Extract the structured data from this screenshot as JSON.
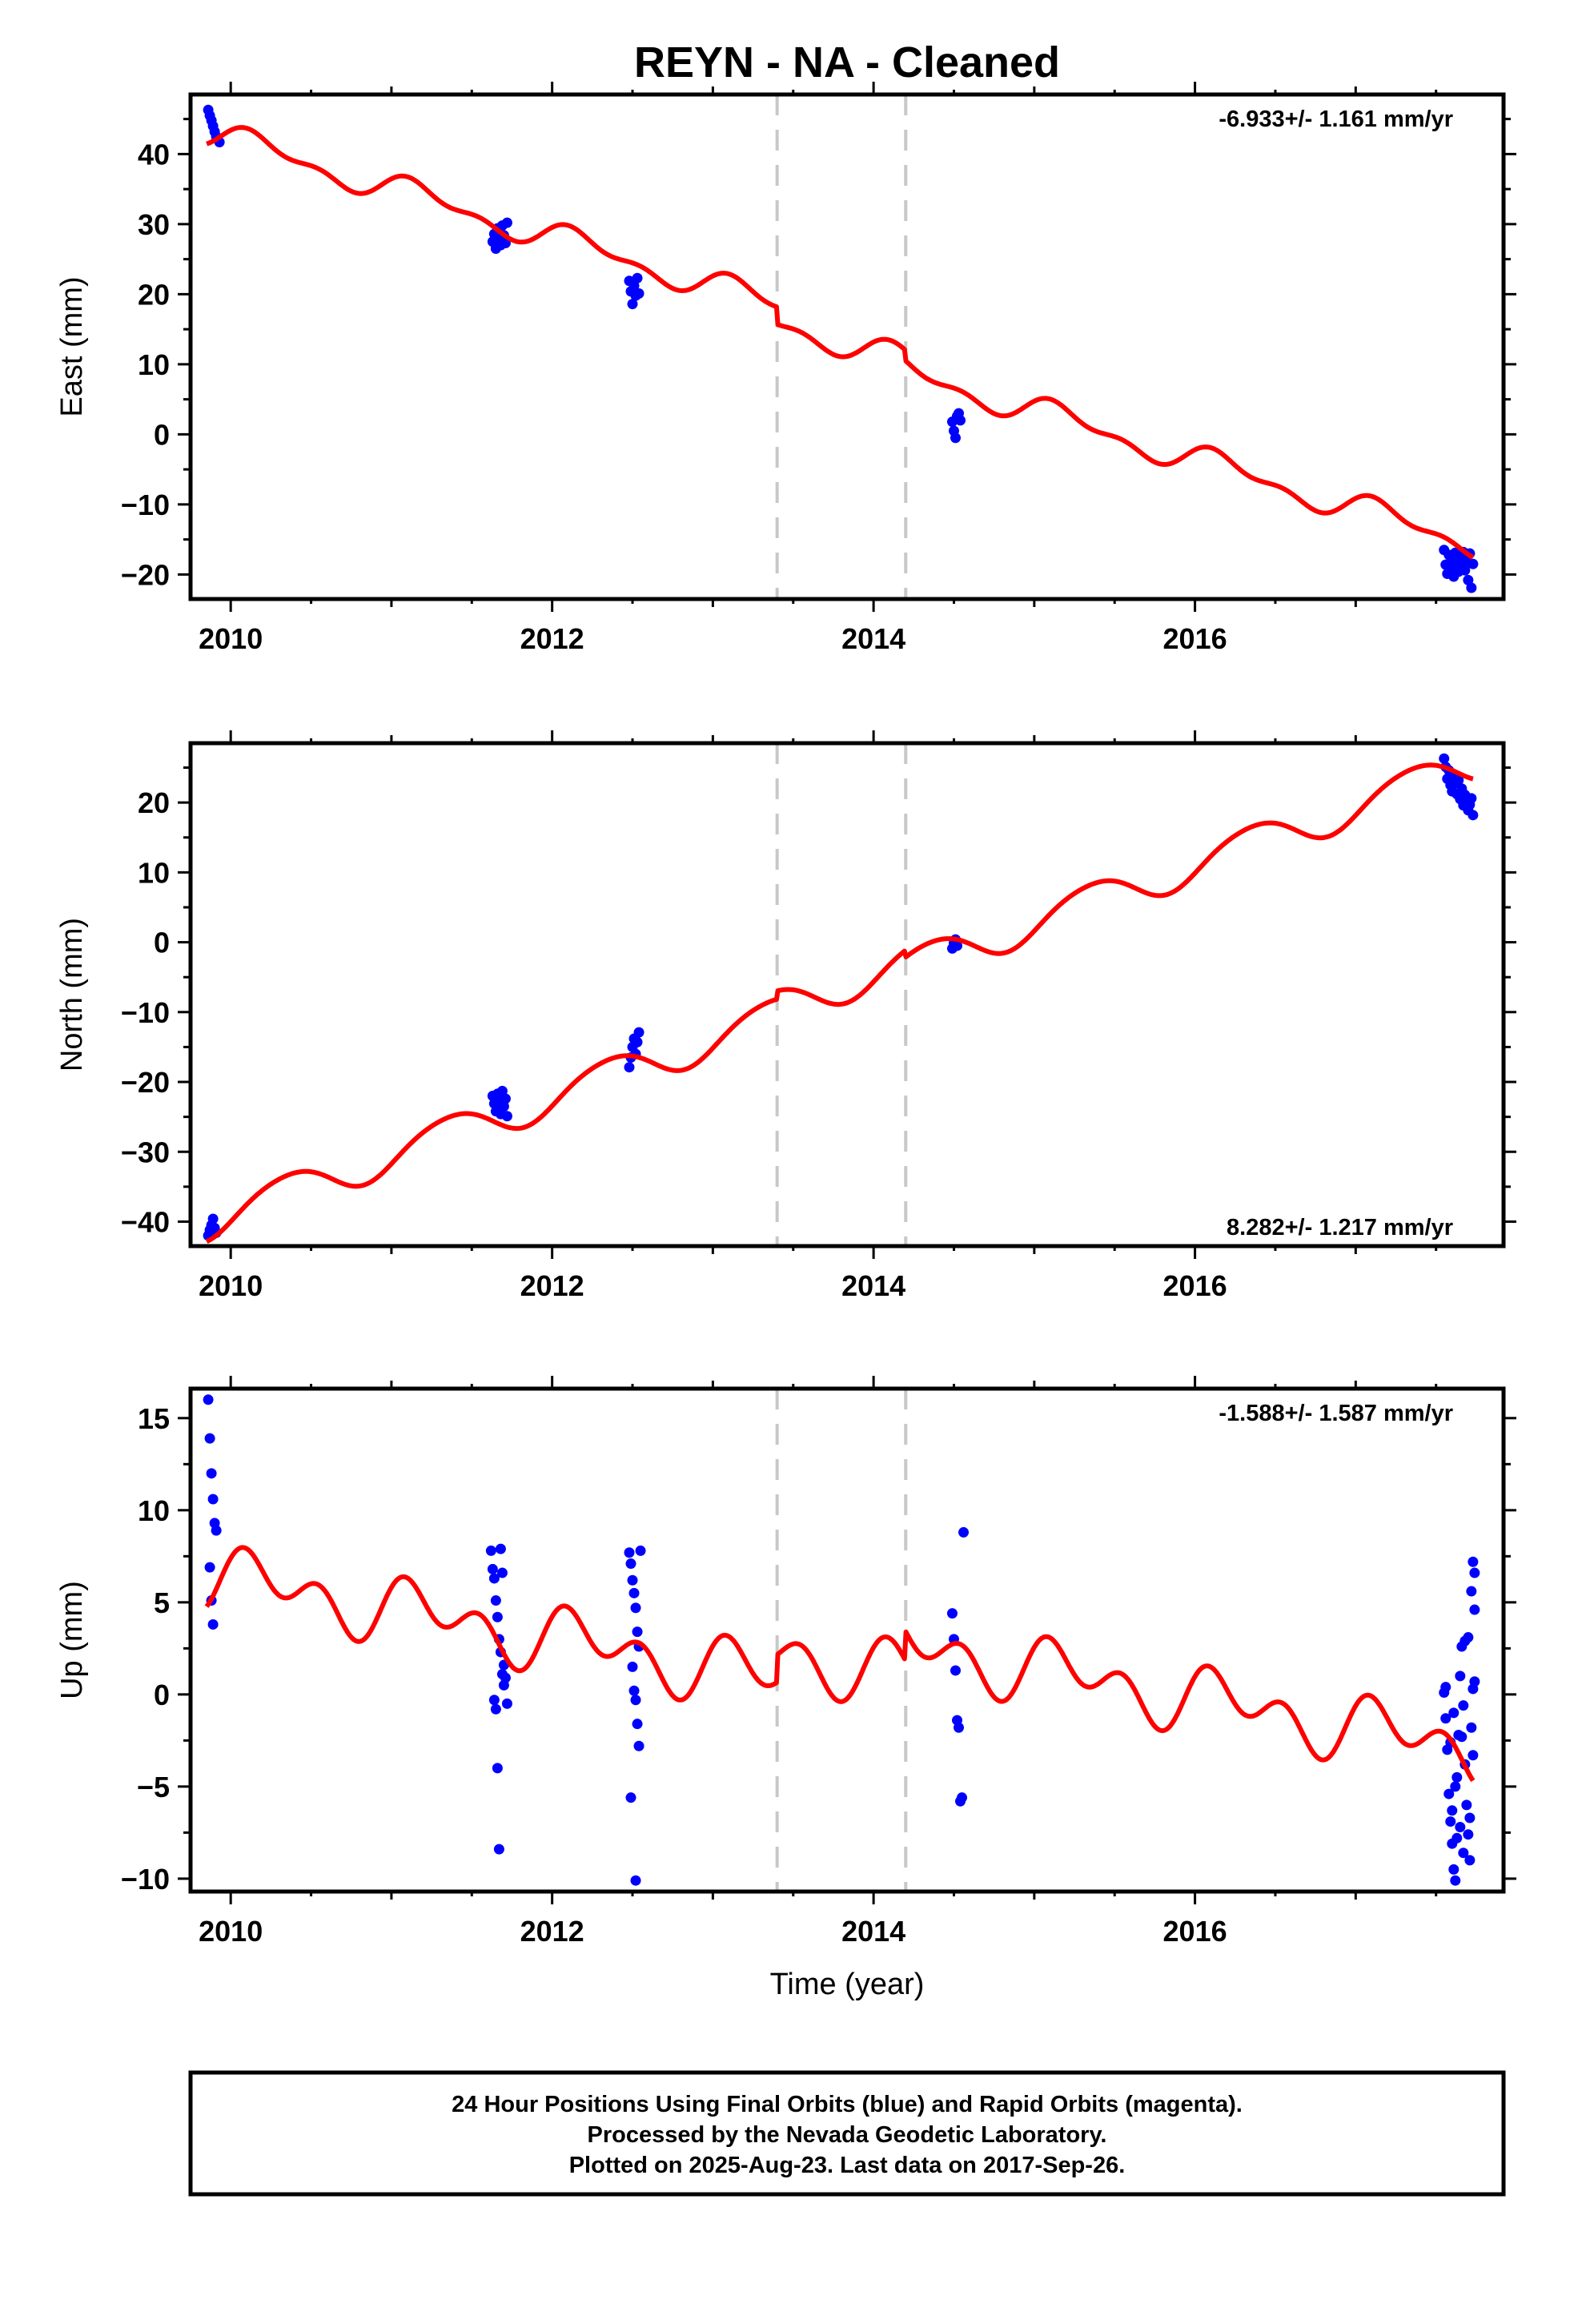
{
  "title": "REYN  - NA - Cleaned",
  "xlabel": "Time (year)",
  "footer": {
    "line1": "24 Hour Positions Using Final Orbits (blue) and Rapid Orbits (magenta).",
    "line2": "Processed by the Nevada Geodetic Laboratory.",
    "line3": "Plotted on 2025-Aug-23. Last data on 2017-Sep-26."
  },
  "colors": {
    "points": "#0000ff",
    "model": "#ff0000",
    "vline": "#c8c8c8",
    "frame": "#000000"
  },
  "chart_data": [
    {
      "type": "scatter",
      "ylabel": "East (mm)",
      "rate": "-6.933+/- 1.161 mm/yr",
      "rate_position": "top-right",
      "xlim": [
        2009.75,
        2017.92
      ],
      "ylim": [
        -23.5,
        48.5
      ],
      "xticks": [
        2010,
        2012,
        2014,
        2016
      ],
      "xtick_labels": [
        "2010",
        "2012",
        "2014",
        "2016"
      ],
      "yticks": [
        -20,
        -10,
        0,
        10,
        20,
        30,
        40
      ],
      "ytick_labels": [
        "−20",
        "−10",
        "0",
        "10",
        "20",
        "30",
        "40"
      ],
      "vlines": [
        2013.4,
        2014.2
      ],
      "model": {
        "trend_rate": -6.933,
        "offset_at_2010": 42.0,
        "annual_sin": 1.5,
        "annual_cos": 0.8,
        "semi_sin": 0.7,
        "semi_cos": 0.6,
        "steps": [
          {
            "x": 2013.4,
            "dy": -2.5
          },
          {
            "x": 2014.2,
            "dy": -1.5
          }
        ],
        "start": 2009.85,
        "end": 2017.73
      },
      "points": [
        [
          2009.86,
          46.3
        ],
        [
          2009.87,
          45.5
        ],
        [
          2009.88,
          44.8
        ],
        [
          2009.89,
          44.0
        ],
        [
          2009.9,
          43.2
        ],
        [
          2009.91,
          42.5
        ],
        [
          2009.93,
          41.7
        ],
        [
          2011.63,
          27.5
        ],
        [
          2011.64,
          28.6
        ],
        [
          2011.65,
          26.5
        ],
        [
          2011.66,
          29.4
        ],
        [
          2011.67,
          28.1
        ],
        [
          2011.68,
          27.0
        ],
        [
          2011.69,
          29.8
        ],
        [
          2011.7,
          28.4
        ],
        [
          2011.71,
          27.3
        ],
        [
          2011.72,
          30.2
        ],
        [
          2012.48,
          21.9
        ],
        [
          2012.49,
          20.4
        ],
        [
          2012.5,
          18.6
        ],
        [
          2012.51,
          21.2
        ],
        [
          2012.52,
          19.8
        ],
        [
          2012.53,
          22.3
        ],
        [
          2012.54,
          20.1
        ],
        [
          2014.49,
          1.8
        ],
        [
          2014.5,
          0.5
        ],
        [
          2014.51,
          -0.5
        ],
        [
          2014.52,
          2.6
        ],
        [
          2014.53,
          3.0
        ],
        [
          2014.54,
          2.0
        ],
        [
          2017.55,
          -16.5
        ],
        [
          2017.56,
          -18.6
        ],
        [
          2017.57,
          -19.9
        ],
        [
          2017.58,
          -17.2
        ],
        [
          2017.59,
          -19.1
        ],
        [
          2017.6,
          -17.9
        ],
        [
          2017.61,
          -20.3
        ],
        [
          2017.62,
          -16.9
        ],
        [
          2017.63,
          -18.4
        ],
        [
          2017.64,
          -19.6
        ],
        [
          2017.65,
          -17.5
        ],
        [
          2017.66,
          -18.9
        ],
        [
          2017.67,
          -16.8
        ],
        [
          2017.68,
          -19.4
        ],
        [
          2017.69,
          -18.1
        ],
        [
          2017.7,
          -20.8
        ],
        [
          2017.71,
          -17.0
        ],
        [
          2017.72,
          -21.9
        ],
        [
          2017.73,
          -18.5
        ]
      ]
    },
    {
      "type": "scatter",
      "ylabel": "North (mm)",
      "rate": "8.282+/- 1.217 mm/yr",
      "rate_position": "bottom-right",
      "xlim": [
        2009.75,
        2017.92
      ],
      "ylim": [
        -43.5,
        28.5
      ],
      "xticks": [
        2010,
        2012,
        2014,
        2016
      ],
      "xtick_labels": [
        "2010",
        "2012",
        "2014",
        "2016"
      ],
      "yticks": [
        -40,
        -30,
        -20,
        -10,
        0,
        10,
        20
      ],
      "ytick_labels": [
        "−40",
        "−30",
        "−20",
        "−10",
        "0",
        "10",
        "20"
      ],
      "vlines": [
        2013.4,
        2014.2
      ],
      "model": {
        "trend_rate": 8.282,
        "offset_at_2010": -38.7,
        "annual_sin": 2.2,
        "annual_cos": -1.5,
        "semi_sin": 0.2,
        "semi_cos": 0.2,
        "steps": [
          {
            "x": 2013.4,
            "dy": 1.2
          },
          {
            "x": 2014.2,
            "dy": -1.0
          }
        ],
        "start": 2009.85,
        "end": 2017.73
      },
      "points": [
        [
          2009.86,
          -42.0
        ],
        [
          2009.87,
          -41.2
        ],
        [
          2009.88,
          -40.5
        ],
        [
          2009.89,
          -39.6
        ],
        [
          2009.9,
          -40.9
        ],
        [
          2009.91,
          -41.6
        ],
        [
          2011.63,
          -22.0
        ],
        [
          2011.64,
          -23.1
        ],
        [
          2011.65,
          -24.2
        ],
        [
          2011.66,
          -21.7
        ],
        [
          2011.67,
          -22.9
        ],
        [
          2011.68,
          -24.6
        ],
        [
          2011.69,
          -21.3
        ],
        [
          2011.7,
          -23.5
        ],
        [
          2011.71,
          -22.4
        ],
        [
          2011.72,
          -24.9
        ],
        [
          2012.48,
          -17.9
        ],
        [
          2012.49,
          -16.5
        ],
        [
          2012.5,
          -15.0
        ],
        [
          2012.51,
          -13.8
        ],
        [
          2012.52,
          -16.0
        ],
        [
          2012.53,
          -14.3
        ],
        [
          2012.54,
          -12.9
        ],
        [
          2014.49,
          -0.9
        ],
        [
          2014.5,
          -0.1
        ],
        [
          2014.51,
          0.4
        ],
        [
          2014.52,
          -0.5
        ],
        [
          2017.55,
          26.3
        ],
        [
          2017.56,
          25.1
        ],
        [
          2017.57,
          23.4
        ],
        [
          2017.58,
          24.6
        ],
        [
          2017.59,
          22.5
        ],
        [
          2017.6,
          21.6
        ],
        [
          2017.61,
          23.9
        ],
        [
          2017.62,
          22.8
        ],
        [
          2017.63,
          21.2
        ],
        [
          2017.64,
          23.2
        ],
        [
          2017.65,
          20.5
        ],
        [
          2017.66,
          22.0
        ],
        [
          2017.67,
          19.6
        ],
        [
          2017.68,
          21.1
        ],
        [
          2017.69,
          20.2
        ],
        [
          2017.7,
          18.9
        ],
        [
          2017.71,
          19.7
        ],
        [
          2017.72,
          20.6
        ],
        [
          2017.73,
          18.2
        ]
      ]
    },
    {
      "type": "scatter",
      "ylabel": "Up (mm)",
      "rate": "-1.588+/- 1.587 mm/yr",
      "rate_position": "top-right",
      "xlim": [
        2009.75,
        2017.92
      ],
      "ylim": [
        -10.7,
        16.6
      ],
      "xticks": [
        2010,
        2012,
        2014,
        2016
      ],
      "xtick_labels": [
        "2010",
        "2012",
        "2014",
        "2016"
      ],
      "yticks": [
        -10,
        -5,
        0,
        5,
        10,
        15
      ],
      "ytick_labels": [
        "−10",
        "−5",
        "0",
        "5",
        "10",
        "15"
      ],
      "vlines": [
        2013.4,
        2014.2
      ],
      "model": {
        "trend_rate": -1.588,
        "offset_at_2010": 6.2,
        "annual_sin": 1.0,
        "annual_cos": 0.3,
        "semi_sin": 0.8,
        "semi_cos": 0.9,
        "steps": [
          {
            "x": 2013.4,
            "dy": 1.5
          },
          {
            "x": 2014.2,
            "dy": 1.6
          }
        ],
        "start": 2009.85,
        "end": 2017.73
      },
      "points": [
        [
          2009.86,
          16.0
        ],
        [
          2009.87,
          13.9
        ],
        [
          2009.88,
          12.0
        ],
        [
          2009.89,
          10.6
        ],
        [
          2009.9,
          9.3
        ],
        [
          2009.91,
          8.9
        ],
        [
          2009.87,
          6.9
        ],
        [
          2009.88,
          5.1
        ],
        [
          2009.89,
          3.8
        ],
        [
          2011.62,
          7.8
        ],
        [
          2011.63,
          6.8
        ],
        [
          2011.64,
          6.3
        ],
        [
          2011.65,
          5.1
        ],
        [
          2011.66,
          4.2
        ],
        [
          2011.67,
          3.0
        ],
        [
          2011.68,
          2.3
        ],
        [
          2011.69,
          1.1
        ],
        [
          2011.7,
          0.5
        ],
        [
          2011.64,
          -0.3
        ],
        [
          2011.65,
          -0.8
        ],
        [
          2011.66,
          -4.0
        ],
        [
          2011.67,
          -8.4
        ],
        [
          2011.68,
          7.9
        ],
        [
          2011.69,
          6.6
        ],
        [
          2011.7,
          1.6
        ],
        [
          2011.71,
          0.9
        ],
        [
          2011.72,
          -0.5
        ],
        [
          2012.48,
          7.7
        ],
        [
          2012.49,
          7.1
        ],
        [
          2012.5,
          6.2
        ],
        [
          2012.51,
          5.5
        ],
        [
          2012.52,
          4.7
        ],
        [
          2012.53,
          3.4
        ],
        [
          2012.54,
          2.6
        ],
        [
          2012.5,
          1.5
        ],
        [
          2012.51,
          0.2
        ],
        [
          2012.52,
          -0.3
        ],
        [
          2012.53,
          -1.6
        ],
        [
          2012.54,
          -2.8
        ],
        [
          2012.49,
          -5.6
        ],
        [
          2012.52,
          -10.1
        ],
        [
          2012.55,
          7.8
        ],
        [
          2014.49,
          4.4
        ],
        [
          2014.5,
          3.0
        ],
        [
          2014.51,
          1.3
        ],
        [
          2014.52,
          -1.4
        ],
        [
          2014.53,
          -1.8
        ],
        [
          2014.54,
          -5.8
        ],
        [
          2014.55,
          -5.6
        ],
        [
          2014.56,
          8.8
        ],
        [
          2017.55,
          0.1
        ],
        [
          2017.56,
          -1.3
        ],
        [
          2017.57,
          -3.0
        ],
        [
          2017.58,
          -5.4
        ],
        [
          2017.59,
          -6.9
        ],
        [
          2017.6,
          -8.1
        ],
        [
          2017.61,
          -9.5
        ],
        [
          2017.62,
          -10.1
        ],
        [
          2017.63,
          -4.5
        ],
        [
          2017.64,
          -2.2
        ],
        [
          2017.65,
          1.0
        ],
        [
          2017.66,
          2.6
        ],
        [
          2017.67,
          -0.6
        ],
        [
          2017.68,
          -3.8
        ],
        [
          2017.69,
          -6.0
        ],
        [
          2017.7,
          -7.6
        ],
        [
          2017.71,
          -9.0
        ],
        [
          2017.72,
          -1.8
        ],
        [
          2017.73,
          0.3
        ],
        [
          2017.56,
          0.4
        ],
        [
          2017.59,
          -2.6
        ],
        [
          2017.62,
          -5.0
        ],
        [
          2017.65,
          -7.2
        ],
        [
          2017.68,
          2.9
        ],
        [
          2017.7,
          3.1
        ],
        [
          2017.72,
          5.6
        ],
        [
          2017.73,
          7.2
        ],
        [
          2017.74,
          6.6
        ],
        [
          2017.74,
          4.6
        ],
        [
          2017.74,
          0.7
        ],
        [
          2017.73,
          -3.3
        ],
        [
          2017.71,
          -6.7
        ],
        [
          2017.63,
          -7.8
        ],
        [
          2017.6,
          -6.3
        ],
        [
          2017.66,
          -2.3
        ],
        [
          2017.61,
          -1.0
        ],
        [
          2017.67,
          -8.6
        ]
      ]
    }
  ]
}
